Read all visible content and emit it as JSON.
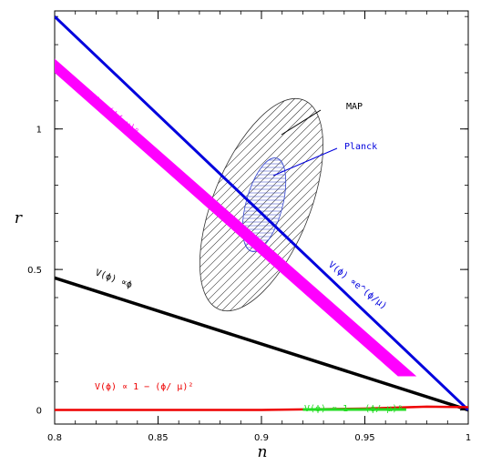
{
  "chart_data": {
    "type": "line",
    "xlabel": "n",
    "ylabel": "r",
    "xlim": [
      0.8,
      1.0
    ],
    "ylim": [
      -0.05,
      1.42
    ],
    "x_ticks": [
      0.8,
      0.85,
      0.9,
      0.95,
      1
    ],
    "x_tick_labels": [
      "0.8",
      "0.85",
      "0.9",
      "0.95",
      "1"
    ],
    "y_ticks": [
      0,
      0.5,
      1
    ],
    "y_tick_labels": [
      "0",
      "0.5",
      "1"
    ],
    "grid": false,
    "series": [
      {
        "name": "V(ϕ) ∝ e^(ϕ/μ)",
        "color": "#0000dd",
        "points": [
          [
            0.8,
            1.4
          ],
          [
            1.0,
            0.0
          ]
        ]
      },
      {
        "name": "V(ϕ) ∝ (ϕ/μ)^p",
        "color": "#ff00ff",
        "band": true,
        "upper": [
          [
            0.8,
            1.25
          ],
          [
            0.975,
            0.12
          ]
        ],
        "lower": [
          [
            0.8,
            1.2
          ],
          [
            0.966,
            0.12
          ]
        ]
      },
      {
        "name": "V(ϕ) ∝ ϕ",
        "color": "#000000",
        "points": [
          [
            0.8,
            0.47
          ],
          [
            1.0,
            0.0
          ]
        ]
      },
      {
        "name": "V(ϕ) ∝ 1 − (ϕ/μ)²",
        "color": "#ee0000",
        "points": [
          [
            0.8,
            0.0
          ],
          [
            0.9,
            0.0
          ],
          [
            0.95,
            0.005
          ],
          [
            0.98,
            0.012
          ],
          [
            1.0,
            0.01
          ]
        ]
      },
      {
        "name": "V(ϕ) ∝ 1 − (ϕ/μ)^p",
        "color": "#22dd22",
        "points": [
          [
            0.92,
            0.002
          ],
          [
            0.97,
            0.002
          ]
        ]
      }
    ],
    "regions": [
      {
        "name": "MAP",
        "color": "#333333",
        "center": [
          0.895,
          0.655
        ],
        "hatch": "diagonal"
      },
      {
        "name": "Planck",
        "color": "#3344cc",
        "center": [
          0.9,
          0.73
        ],
        "hatch": "horizontal"
      }
    ],
    "annotations": [
      {
        "name": "MAP",
        "text": "MAP",
        "color": "#000000"
      },
      {
        "name": "Planck",
        "text": "Planck",
        "color": "#0000dd"
      },
      {
        "name": "exp",
        "text": "V(ϕ) ∝e^(ϕ/μ)",
        "color": "#0000dd"
      },
      {
        "name": "power",
        "text": "V(ϕ) ∝(ϕ/ μ)ᵖ",
        "color": "#ff00ff"
      },
      {
        "name": "linear",
        "text": "V(ϕ) ∝ϕ",
        "color": "#000000"
      },
      {
        "name": "quad",
        "text": "V(ϕ) ∝ 1 − (ϕ/ μ)²",
        "color": "#ee0000"
      },
      {
        "name": "pth",
        "text": "V(ϕ) ∝ 1 − (ϕ/ μ)ᵖ",
        "color": "#22dd22"
      }
    ]
  }
}
